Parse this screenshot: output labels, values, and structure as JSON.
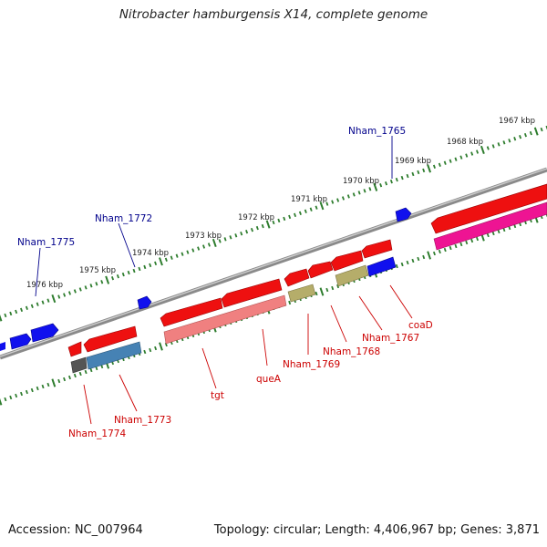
{
  "title": "Nitrobacter hamburgensis X14, complete genome",
  "footer": {
    "accession": "Accession: NC_007964",
    "summary": "Topology: circular; Length: 4,406,967 bp; Genes: 3,871"
  },
  "colors": {
    "backbone": "#808080",
    "tick": "#2e7d2e",
    "forward_label": "#00008b",
    "reverse_label": "#cc0000",
    "blue_gene": "#1010ee",
    "red_gene": "#ee1010",
    "pink_rna": "#f08080",
    "steelblue_gene": "#4682b4",
    "khaki_gene": "#b5ad6a",
    "magenta_gene": "#ee1493",
    "dark_gene": "#555555"
  },
  "scale_labels": [
    "1967 kbp",
    "1968 kbp",
    "1969 kbp",
    "1970 kbp",
    "1971 kbp",
    "1972 kbp",
    "1973 kbp",
    "1974 kbp",
    "1975 kbp",
    "1976 kbp"
  ],
  "forward_gene_labels": [
    "Nham_1765",
    "Nham_1772",
    "Nham_1775"
  ],
  "reverse_gene_labels": [
    "coaD",
    "Nham_1767",
    "Nham_1768",
    "Nham_1769",
    "queA",
    "tgt",
    "Nham_1773",
    "Nham_1774"
  ]
}
